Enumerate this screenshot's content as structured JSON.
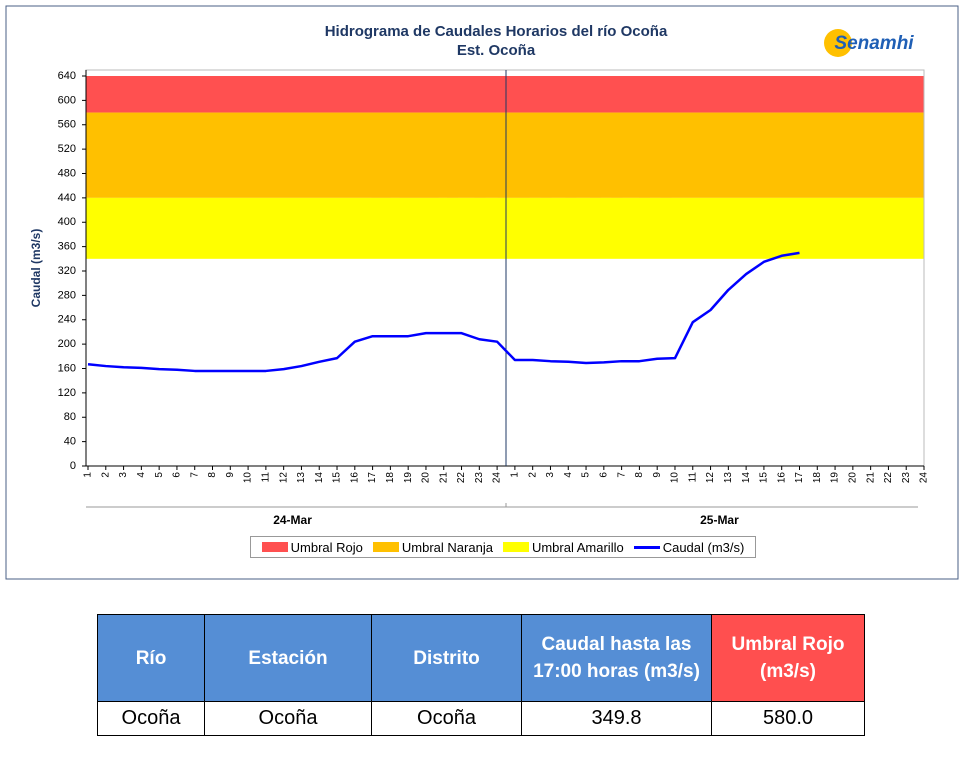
{
  "chart_data": {
    "type": "line",
    "title": "Hidrograma de Caudales Horarios del río Ocoña",
    "subtitle": "Est. Ocoña",
    "logo": "Senamhi",
    "ylabel": "Caudal  (m3/s)",
    "categories": [
      "1",
      "2",
      "3",
      "4",
      "5",
      "6",
      "7",
      "8",
      "9",
      "10",
      "11",
      "12",
      "13",
      "14",
      "15",
      "16",
      "17",
      "18",
      "19",
      "20",
      "21",
      "22",
      "23",
      "24",
      "1",
      "2",
      "3",
      "4",
      "5",
      "6",
      "7",
      "8",
      "9",
      "10",
      "11",
      "12",
      "13",
      "14",
      "15",
      "16",
      "17",
      "18",
      "19",
      "20",
      "21",
      "22",
      "23",
      "24"
    ],
    "groups": [
      "24-Mar",
      "25-Mar"
    ],
    "bands": [
      {
        "name": "Umbral Rojo",
        "color": "#ff5050",
        "from": 580,
        "to": 640
      },
      {
        "name": "Umbral Naranja",
        "color": "#ffc000",
        "from": 440,
        "to": 580
      },
      {
        "name": "Umbral Amarillo",
        "color": "#ffff00",
        "from": 340,
        "to": 440
      }
    ],
    "series": [
      {
        "name": "Caudal (m3/s)",
        "color": "#0000ff",
        "values": [
          167,
          164,
          162,
          161,
          159,
          158,
          156,
          156,
          156,
          156,
          156,
          159,
          164,
          171,
          177,
          204,
          213,
          213,
          213,
          218,
          218,
          218,
          208,
          204,
          174,
          174,
          172,
          171,
          169,
          170,
          172,
          172,
          176,
          177,
          236,
          256,
          289,
          315,
          335,
          345,
          349.8,
          null,
          null,
          null,
          null,
          null,
          null,
          null
        ]
      }
    ],
    "ylim": [
      0,
      640
    ],
    "yticks": [
      0,
      40,
      80,
      120,
      160,
      200,
      240,
      280,
      320,
      360,
      400,
      440,
      480,
      520,
      560,
      600,
      640
    ]
  },
  "table": {
    "headers": [
      "Río",
      "Estación",
      "Distrito",
      "Caudal hasta las 17:00 horas (m3/s)",
      "Umbral  Rojo (m3/s)"
    ],
    "rows": [
      [
        "Ocoña",
        "Ocoña",
        "Ocoña",
        "349.8",
        "580.0"
      ]
    ]
  }
}
